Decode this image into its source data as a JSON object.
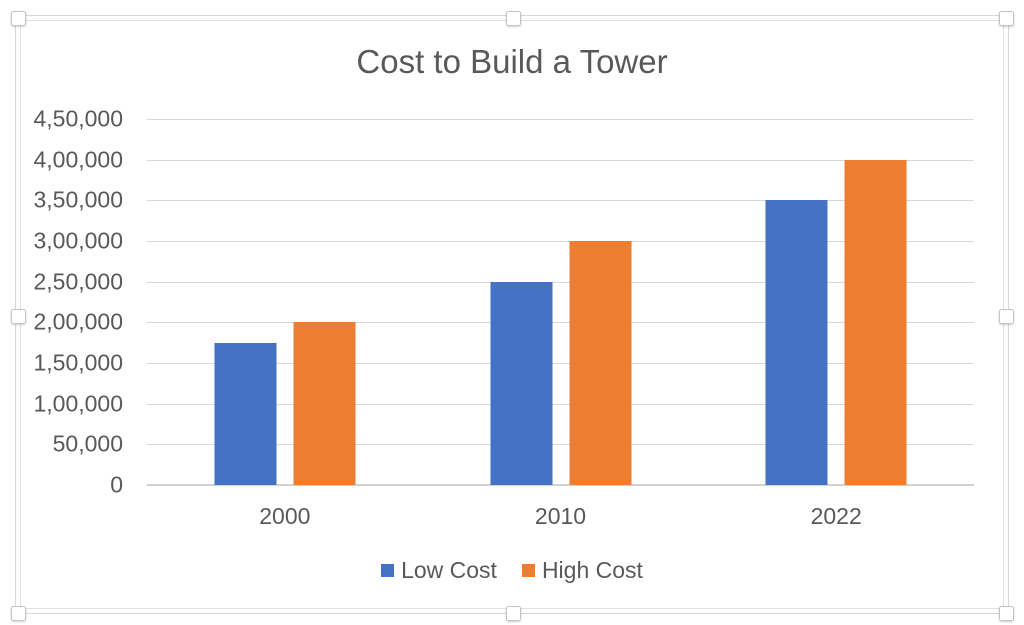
{
  "chart_data": {
    "type": "bar",
    "title": "Cost to Build a Tower",
    "categories": [
      "2000",
      "2010",
      "2022"
    ],
    "series": [
      {
        "name": "Low Cost",
        "color": "#4472C4",
        "values": [
          175000,
          250000,
          350000
        ]
      },
      {
        "name": "High Cost",
        "color": "#ED7D31",
        "values": [
          200000,
          300000,
          400000
        ]
      }
    ],
    "xlabel": "",
    "ylabel": "",
    "ylim": [
      0,
      450000
    ],
    "ytick_step": 50000,
    "ytick_labels": [
      "0",
      "50,000",
      "1,00,000",
      "1,50,000",
      "2,00,000",
      "2,50,000",
      "3,00,000",
      "3,50,000",
      "4,00,000",
      "4,50,000"
    ],
    "number_format": "indian-grouping",
    "grid": true,
    "legend_position": "bottom",
    "colors": {
      "text": "#595959",
      "gridline": "#D9D9D9",
      "axis_line": "#D2D2D2",
      "background": "#FFFFFF"
    }
  },
  "selection": {
    "state": "chart-object-selected",
    "handle_count": 8
  }
}
